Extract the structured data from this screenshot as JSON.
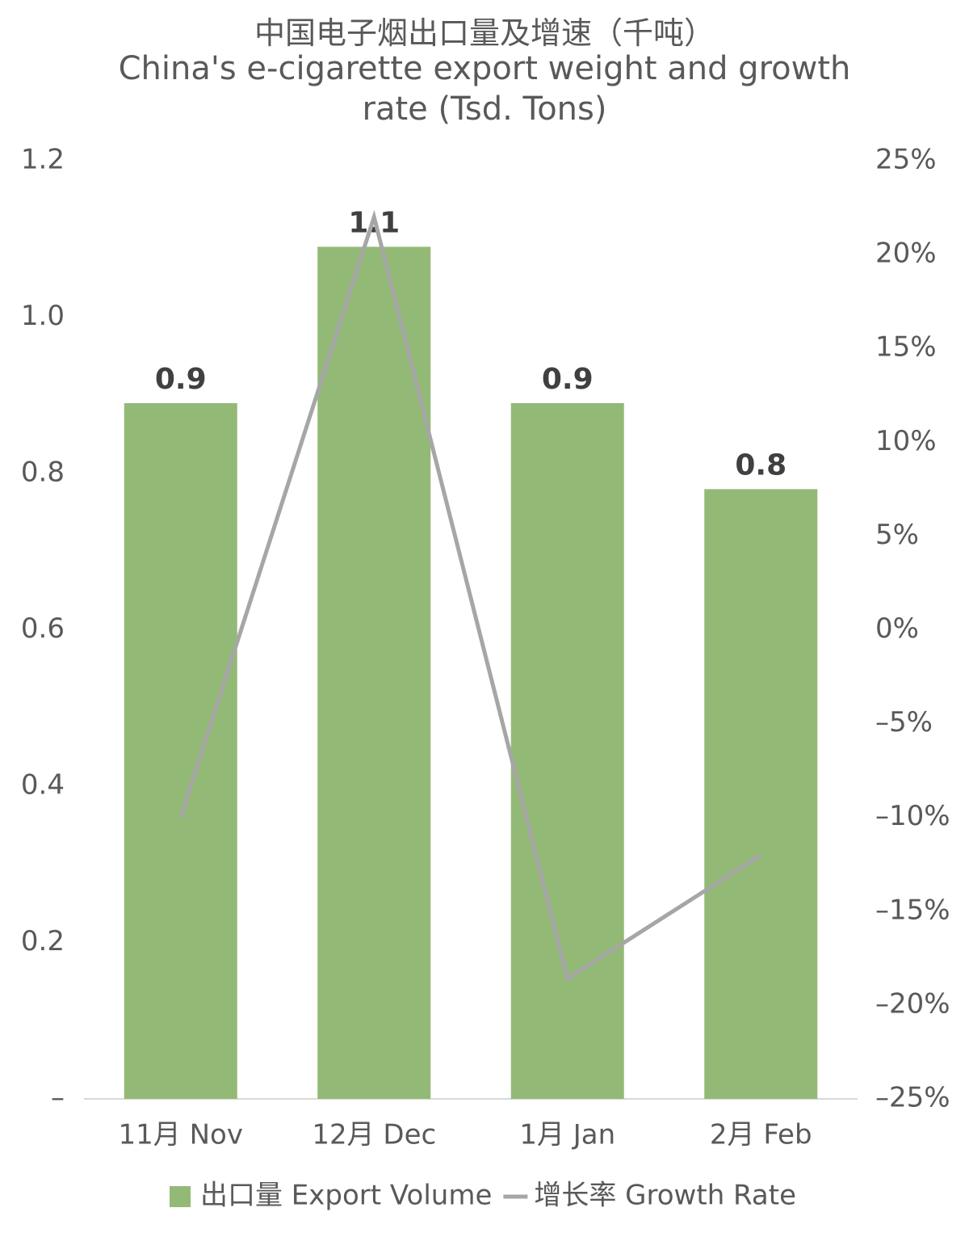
{
  "chart_data": {
    "type": "bar-line",
    "title": "中国电子烟出口量及增速（千吨）",
    "subtitle": "China's e-cigarette export weight and growth rate (Tsd. Tons)",
    "categories": [
      "11月 Nov",
      "12月 Dec",
      "1月 Jan",
      "2月 Feb"
    ],
    "series": [
      {
        "name": "出口量 Export Volume",
        "type": "bar",
        "color": "#93b977",
        "values": [
          0.89,
          1.09,
          0.89,
          0.78
        ],
        "value_labels": [
          "0.9",
          "1.1",
          "0.9",
          "0.8"
        ]
      },
      {
        "name": "增长率 Growth Rate",
        "type": "line",
        "axis": "y2",
        "color": "#a6a6a6",
        "values": [
          -10,
          22,
          -18.6,
          -12
        ]
      }
    ],
    "ylim": [
      0,
      1.2
    ],
    "yticks": [
      {
        "value": 0,
        "label": "–"
      },
      0.2,
      0.4,
      0.6,
      0.8,
      {
        "value": 1,
        "label": "1.0"
      },
      1.2
    ],
    "y2lim": [
      -25,
      25
    ],
    "y2ticks": [
      {
        "value": -25,
        "label": "–25%"
      },
      {
        "value": -20,
        "label": "–20%"
      },
      {
        "value": -15,
        "label": "–15%"
      },
      {
        "value": -10,
        "label": "–10%"
      },
      {
        "value": -5,
        "label": "–5%"
      },
      {
        "value": 0,
        "label": "0%"
      },
      {
        "value": 5,
        "label": "5%"
      },
      {
        "value": 10,
        "label": "10%"
      },
      {
        "value": 15,
        "label": "15%"
      },
      {
        "value": 20,
        "label": "20%"
      },
      {
        "value": 25,
        "label": "25%"
      }
    ],
    "legend": "bottom"
  }
}
